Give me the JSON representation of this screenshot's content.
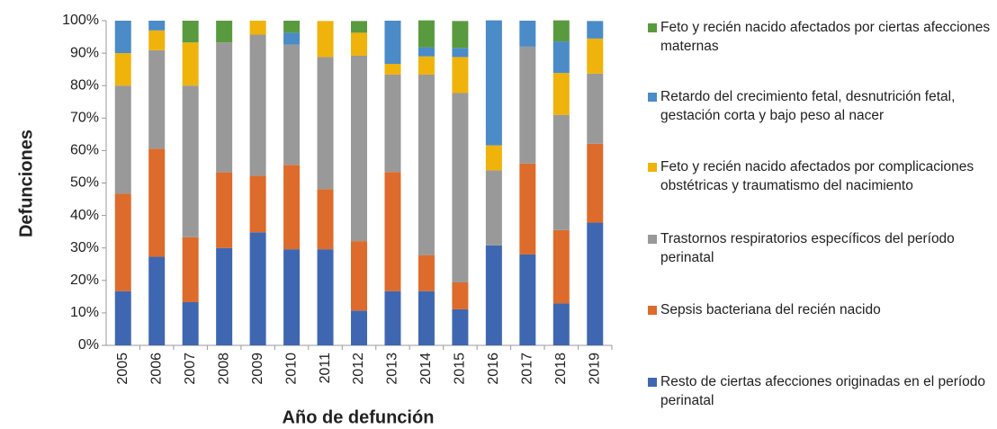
{
  "chart_data": {
    "type": "stacked_bar_percent",
    "y_label": "Defunciones",
    "x_label": "Año de defunción",
    "categories": [
      "2005",
      "2006",
      "2007",
      "2008",
      "2009",
      "2010",
      "2011",
      "2012",
      "2013",
      "2014",
      "2015",
      "2016",
      "2017",
      "2018",
      "2019"
    ],
    "series": [
      {
        "name": "Resto de ciertas afecciones originadas en el período perinatal",
        "color": "#3f67b1",
        "values": [
          16.7,
          27.3,
          13.3,
          30,
          34.8,
          29.6,
          29.6,
          10.7,
          16.7,
          16.7,
          11.1,
          30.8,
          28,
          12.9,
          37.8
        ]
      },
      {
        "name": "Sepsis bacteriana del recién nacido",
        "color": "#dd6b2b",
        "values": [
          30,
          33.3,
          20,
          23.3,
          17.4,
          26,
          18.5,
          21.4,
          36.7,
          11.1,
          8.3,
          0,
          28,
          22.6,
          24.3
        ]
      },
      {
        "name": "Trastornos respiratorios específicos del período perinatal",
        "color": "#999999",
        "values": [
          33.3,
          30.3,
          46.7,
          40,
          43.5,
          37,
          40.7,
          57.1,
          30,
          55.6,
          58.3,
          23.1,
          36,
          35.5,
          21.6
        ]
      },
      {
        "name": "Feto y recién nacido afectados por complicaciones obstétricas y traumatismo del nacimiento",
        "color": "#efb30b",
        "values": [
          10,
          6.1,
          13.3,
          0,
          4.3,
          0,
          11.1,
          7.1,
          3.3,
          5.6,
          11.1,
          7.7,
          0,
          12.9,
          10.8
        ]
      },
      {
        "name": "Retardo del crecimiento fetal, desnutrición fetal, gestación corta y bajo peso al nacer",
        "color": "#4a8bc8",
        "values": [
          10,
          3,
          0,
          0,
          0,
          3.7,
          0,
          0,
          13.3,
          2.8,
          2.8,
          38.5,
          8,
          9.7,
          5.4
        ]
      },
      {
        "name": "Feto y recién nacido afectados por ciertas afecciones maternas",
        "color": "#5a9a3f",
        "values": [
          0,
          0,
          6.7,
          6.7,
          0,
          3.7,
          0,
          3.6,
          0,
          8.3,
          8.3,
          0,
          0,
          6.5,
          0
        ]
      }
    ],
    "ylim": [
      0,
      100
    ],
    "yticks": [
      {
        "value": 0,
        "label": "0%"
      },
      {
        "value": 10,
        "label": "10%"
      },
      {
        "value": 20,
        "label": "20%"
      },
      {
        "value": 30,
        "label": "30%"
      },
      {
        "value": 40,
        "label": "40%"
      },
      {
        "value": 50,
        "label": "50%"
      },
      {
        "value": 60,
        "label": "60%"
      },
      {
        "value": 70,
        "label": "70%"
      },
      {
        "value": 80,
        "label": "80%"
      },
      {
        "value": 90,
        "label": "90%"
      },
      {
        "value": 100,
        "label": "100%"
      }
    ],
    "legend": "right"
  }
}
